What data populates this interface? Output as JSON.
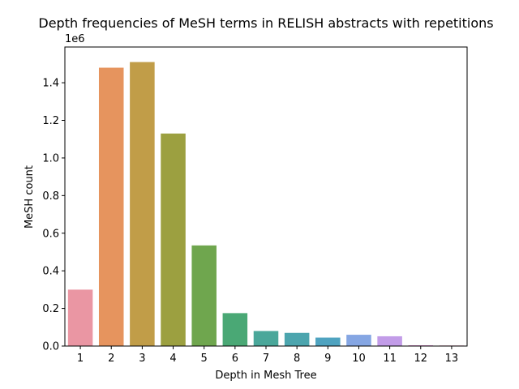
{
  "chart_data": {
    "type": "bar",
    "title": "Depth frequencies of MeSH terms in RELISH abstracts with repetitions",
    "xlabel": "Depth in Mesh Tree",
    "ylabel": "MeSH count",
    "y_offset_label": "1e6",
    "categories": [
      "1",
      "2",
      "3",
      "4",
      "5",
      "6",
      "7",
      "8",
      "9",
      "10",
      "11",
      "12",
      "13"
    ],
    "values": [
      300000,
      1480000,
      1510000,
      1130000,
      535000,
      175000,
      80000,
      70000,
      45000,
      60000,
      52000,
      4000,
      3000
    ],
    "colors": [
      "#ea96a3",
      "#e6945e",
      "#c19d48",
      "#9ca040",
      "#6fa64e",
      "#4aa875",
      "#4aa79a",
      "#4ca5ae",
      "#4fa3c0",
      "#85a6e3",
      "#c29ce8",
      "#e68bd4",
      "#e890b1"
    ],
    "ylim": [
      0,
      1590000
    ],
    "yticks": [
      0,
      200000,
      400000,
      600000,
      800000,
      1000000,
      1200000,
      1400000
    ],
    "ytick_labels": [
      "0.0",
      "0.2",
      "0.4",
      "0.6",
      "0.8",
      "1.0",
      "1.2",
      "1.4"
    ],
    "grid": false,
    "legend": "none"
  }
}
